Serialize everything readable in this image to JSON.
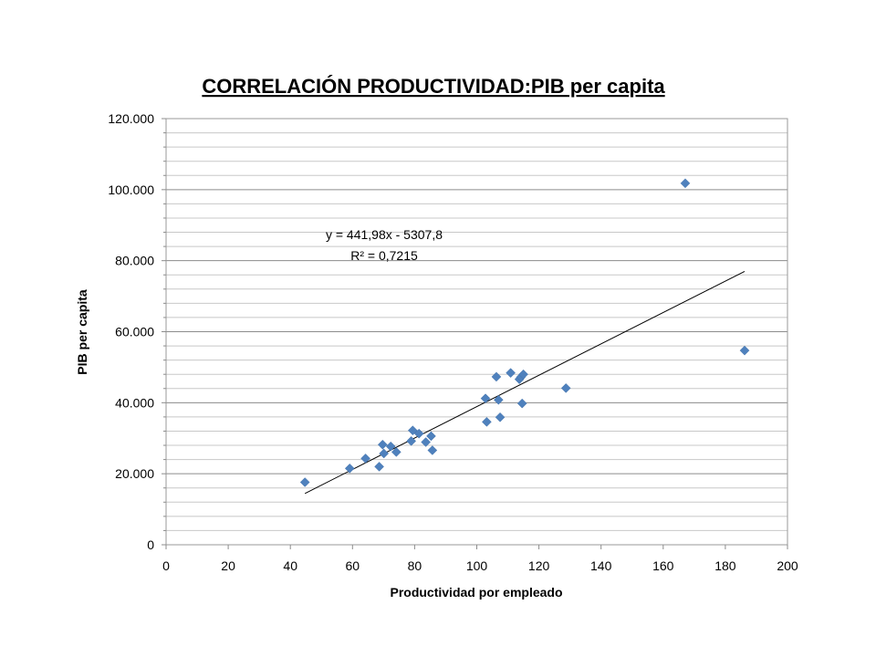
{
  "chart_data": {
    "type": "scatter",
    "title": "CORRELACIÓN PRODUCTIVIDAD:PIB per capita",
    "xlabel": "Productividad por empleado",
    "ylabel": "PIB per capita",
    "xlim": [
      0,
      200
    ],
    "ylim": [
      0,
      120000
    ],
    "x_ticks": [
      0,
      20,
      40,
      60,
      80,
      100,
      120,
      140,
      160,
      180,
      200
    ],
    "x_tick_labels": [
      "0",
      "20",
      "40",
      "60",
      "80",
      "100",
      "120",
      "140",
      "160",
      "180",
      "200"
    ],
    "y_ticks": [
      0,
      20000,
      40000,
      60000,
      80000,
      100000,
      120000
    ],
    "y_tick_labels": [
      "0",
      "20.000",
      "40.000",
      "60.000",
      "80.000",
      "100.000",
      "120.000"
    ],
    "y_minor_step": 4000,
    "grid": true,
    "legend": "none",
    "marker_color": "#4F81BD",
    "trendline_color": "#000000",
    "trendline": {
      "slope": 441.98,
      "intercept": -5307.8,
      "x_range": [
        44.7,
        186.2
      ],
      "equation_label": "y = 441,98x - 5307,8",
      "r2_label": "R² = 0,7215"
    },
    "points": [
      {
        "x": 44.7,
        "y": 17600
      },
      {
        "x": 59.1,
        "y": 21500
      },
      {
        "x": 64.2,
        "y": 24300
      },
      {
        "x": 68.6,
        "y": 22000
      },
      {
        "x": 69.7,
        "y": 28200
      },
      {
        "x": 70.1,
        "y": 25700
      },
      {
        "x": 72.3,
        "y": 27700
      },
      {
        "x": 74.1,
        "y": 26100
      },
      {
        "x": 78.9,
        "y": 29200
      },
      {
        "x": 79.4,
        "y": 32200
      },
      {
        "x": 81.4,
        "y": 31300
      },
      {
        "x": 83.6,
        "y": 28900
      },
      {
        "x": 85.3,
        "y": 30600
      },
      {
        "x": 85.7,
        "y": 26600
      },
      {
        "x": 102.8,
        "y": 41200
      },
      {
        "x": 103.2,
        "y": 34600
      },
      {
        "x": 106.3,
        "y": 47300
      },
      {
        "x": 107.0,
        "y": 40800
      },
      {
        "x": 107.5,
        "y": 35900
      },
      {
        "x": 110.9,
        "y": 48400
      },
      {
        "x": 113.7,
        "y": 46600
      },
      {
        "x": 114.2,
        "y": 47200
      },
      {
        "x": 114.6,
        "y": 39800
      },
      {
        "x": 115.0,
        "y": 48000
      },
      {
        "x": 128.7,
        "y": 44100
      },
      {
        "x": 167.1,
        "y": 101800
      },
      {
        "x": 186.2,
        "y": 54700
      }
    ]
  }
}
